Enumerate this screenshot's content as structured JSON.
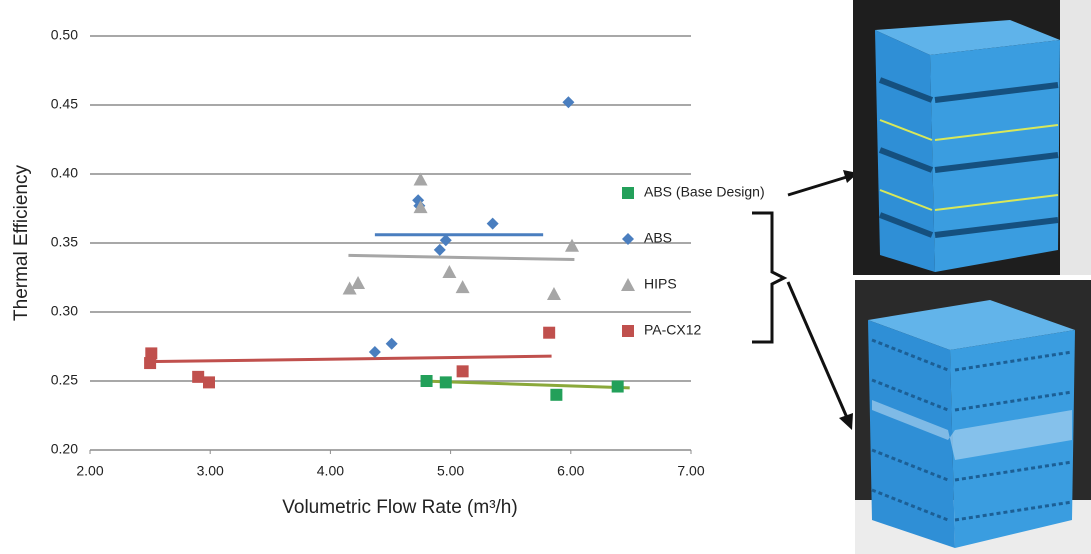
{
  "chart_data": {
    "type": "scatter",
    "x_label": "Volumetric Flow Rate (m³/h)",
    "y_label": "Thermal Efficiency",
    "xlim": [
      2,
      7
    ],
    "xticks": [
      {
        "value": 2,
        "label": "2.00"
      },
      {
        "value": 3,
        "label": "3.00"
      },
      {
        "value": 4,
        "label": "4.00"
      },
      {
        "value": 5,
        "label": "5.00"
      },
      {
        "value": 6,
        "label": "6.00"
      },
      {
        "value": 7,
        "label": "7.00"
      }
    ],
    "ylim": [
      0.2,
      0.5
    ],
    "yticks": [
      {
        "value": 0.2,
        "label": "0.20"
      },
      {
        "value": 0.25,
        "label": "0.25"
      },
      {
        "value": 0.3,
        "label": "0.30"
      },
      {
        "value": 0.35,
        "label": "0.35"
      },
      {
        "value": 0.4,
        "label": "0.40"
      },
      {
        "value": 0.45,
        "label": "0.45"
      },
      {
        "value": 0.5,
        "label": "0.50"
      }
    ],
    "grid": true,
    "legend": "right",
    "series": [
      {
        "name": "ABS (Base Design)",
        "color": "#23a05a",
        "marker": "square",
        "x": [
          4.8,
          4.96,
          5.88,
          6.39
        ],
        "values": [
          0.25,
          0.249,
          0.24,
          0.246
        ],
        "trendline": {
          "x": [
            4.76,
            6.49
          ],
          "y": [
            0.25,
            0.245
          ]
        },
        "trendline_color": "#8aa83a"
      },
      {
        "name": "ABS",
        "color": "#4a7ebf",
        "marker": "diamond",
        "x": [
          5.98,
          4.73,
          4.74,
          5.35,
          4.96,
          4.91,
          4.37,
          4.51
        ],
        "values": [
          0.452,
          0.381,
          0.377,
          0.364,
          0.352,
          0.345,
          0.271,
          0.277
        ],
        "trendline": {
          "x": [
            4.37,
            5.77
          ],
          "y": [
            0.356,
            0.356
          ]
        },
        "trendline_color": "#4a7ebf"
      },
      {
        "name": "HIPS",
        "color": "#a6a6a6",
        "marker": "triangle",
        "x": [
          4.75,
          4.75,
          4.16,
          4.23,
          4.99,
          5.1,
          5.86,
          6.01
        ],
        "values": [
          0.396,
          0.376,
          0.317,
          0.321,
          0.329,
          0.318,
          0.313,
          0.348
        ],
        "trendline": {
          "x": [
            4.15,
            6.03
          ],
          "y": [
            0.341,
            0.338
          ]
        },
        "trendline_color": "#a6a6a6"
      },
      {
        "name": "PA-CX12",
        "color": "#c0504d",
        "marker": "square",
        "x": [
          2.51,
          2.5,
          2.9,
          2.99,
          5.1,
          5.82
        ],
        "values": [
          0.27,
          0.263,
          0.253,
          0.249,
          0.257,
          0.285
        ],
        "trendline": {
          "x": [
            2.47,
            5.84
          ],
          "y": [
            0.264,
            0.268
          ]
        },
        "trendline_color": "#c0504d"
      }
    ]
  }
}
